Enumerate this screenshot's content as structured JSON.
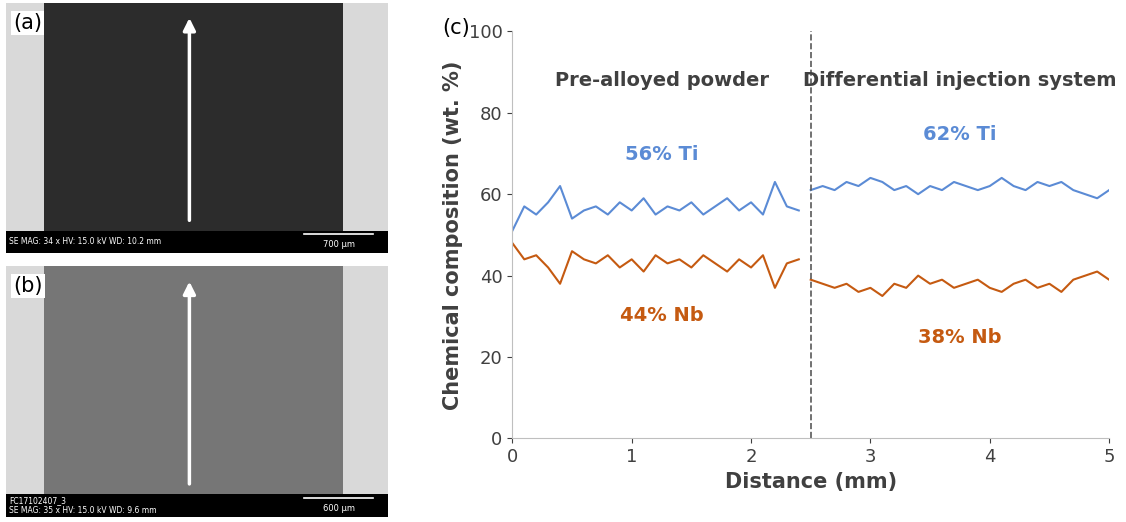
{
  "chart_data": {
    "type": "line",
    "panel_label": "(c)",
    "x_label": "Distance (mm)",
    "y_label": "Chemical composition (wt. %)",
    "xlim": [
      0,
      5
    ],
    "xticks": [
      0,
      1,
      2,
      3,
      4,
      5
    ],
    "ylim": [
      0,
      100
    ],
    "yticks": [
      0,
      20,
      40,
      60,
      80,
      100
    ],
    "grid": false,
    "divider": 2.5,
    "regions": [
      "Pre-alloyed powder",
      "Differential injection system"
    ],
    "x": [
      0.0,
      0.1,
      0.2,
      0.3,
      0.4,
      0.5,
      0.6,
      0.7,
      0.8,
      0.9,
      1.0,
      1.1,
      1.2,
      1.3,
      1.4,
      1.5,
      1.6,
      1.7,
      1.8,
      1.9,
      2.0,
      2.1,
      2.2,
      2.3,
      2.4,
      2.45,
      2.5,
      2.6,
      2.7,
      2.8,
      2.9,
      3.0,
      3.1,
      3.2,
      3.3,
      3.4,
      3.5,
      3.6,
      3.7,
      3.8,
      3.9,
      4.0,
      4.1,
      4.2,
      4.3,
      4.4,
      4.5,
      4.6,
      4.7,
      4.8,
      4.9,
      5.0
    ],
    "series": [
      {
        "color": "#5b8bd5",
        "values": [
          51,
          57,
          55,
          58,
          62,
          54,
          56,
          57,
          55,
          58,
          56,
          59,
          55,
          57,
          56,
          58,
          55,
          57,
          59,
          56,
          58,
          55,
          63,
          57,
          56,
          null,
          61,
          62,
          61,
          63,
          62,
          64,
          63,
          61,
          62,
          60,
          62,
          61,
          63,
          62,
          61,
          62,
          64,
          62,
          61,
          63,
          62,
          63,
          61,
          60,
          59,
          61
        ],
        "annotations": [
          "56% Ti",
          "62% Ti"
        ]
      },
      {
        "color": "#c55a11",
        "values": [
          48,
          44,
          45,
          42,
          38,
          46,
          44,
          43,
          45,
          42,
          44,
          41,
          45,
          43,
          44,
          42,
          45,
          43,
          41,
          44,
          42,
          45,
          37,
          43,
          44,
          null,
          39,
          38,
          37,
          38,
          36,
          37,
          35,
          38,
          37,
          40,
          38,
          39,
          37,
          38,
          39,
          37,
          36,
          38,
          39,
          37,
          38,
          36,
          39,
          40,
          41,
          39
        ],
        "annotations": [
          "44% Nb",
          "38% Nb"
        ]
      }
    ]
  },
  "images": [
    {
      "panel_label": "(a)",
      "info": "SE MAG: 34 x HV: 15.0 kV WD: 10.2 mm",
      "scale_bar": "700 µm"
    },
    {
      "panel_label": "(b)",
      "sample_id": "FC17102407_3",
      "info": "SE MAG: 35 x HV: 15.0 kV WD: 9.6 mm",
      "scale_bar": "600 µm"
    }
  ]
}
